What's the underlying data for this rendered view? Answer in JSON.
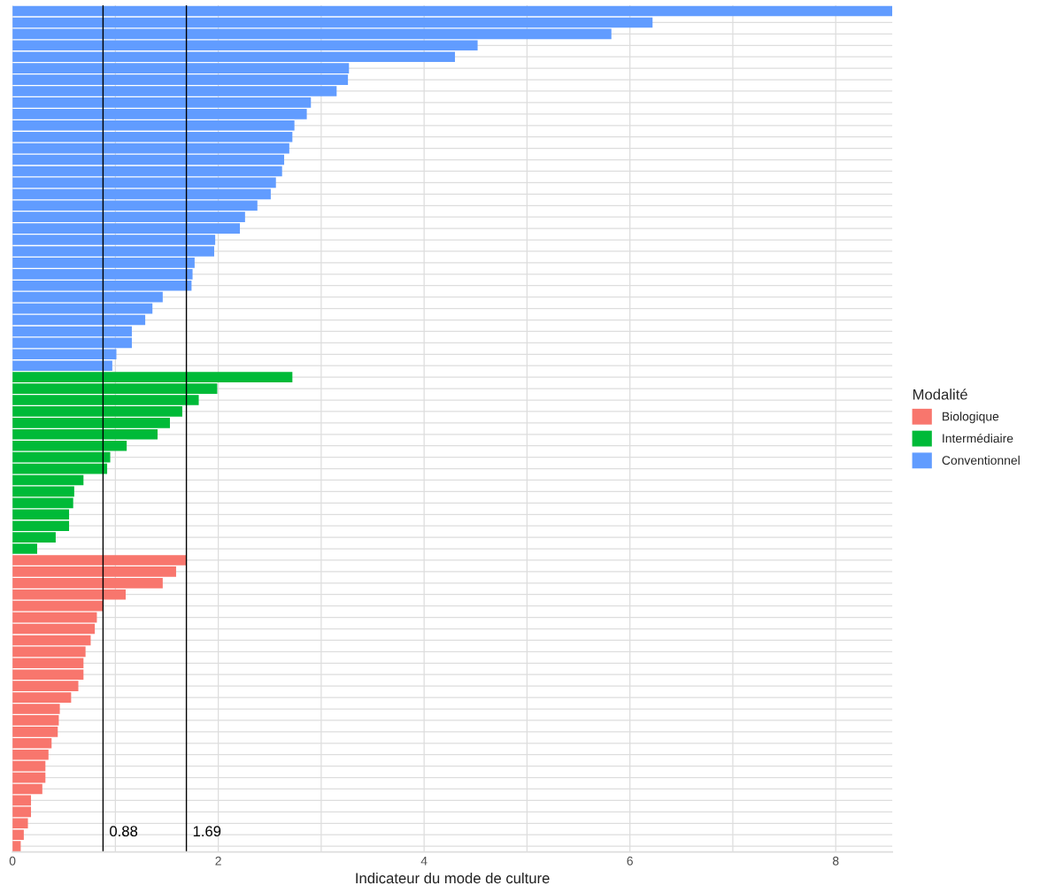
{
  "chart_data": {
    "type": "bar",
    "orientation": "horizontal",
    "xlabel": "Indicateur du mode de culture",
    "legend_title": "Modalité",
    "legend": "right",
    "grid": true,
    "tick_labels": "x",
    "categories": [
      null,
      null,
      null,
      null,
      null,
      null,
      null,
      null,
      null,
      null,
      null,
      null,
      null,
      null,
      null,
      null,
      null,
      null,
      null,
      null,
      null,
      null,
      null,
      null,
      null,
      null,
      null,
      null,
      null,
      null,
      null,
      null,
      null,
      null,
      null,
      null,
      null,
      null,
      null,
      null,
      null,
      null,
      null,
      null,
      null,
      null,
      null,
      null,
      null,
      null,
      null,
      null,
      null,
      null,
      null,
      null,
      null,
      null,
      null,
      null,
      null,
      null,
      null,
      null,
      null,
      null,
      null,
      null,
      null,
      null,
      null,
      null,
      null,
      null
    ],
    "xlim": [
      0,
      8.55
    ],
    "xticks": [
      0,
      {
        "value": 1,
        "label": null
      },
      2,
      {
        "value": 3,
        "label": null
      },
      4,
      {
        "value": 5,
        "label": null
      },
      6,
      {
        "value": 7,
        "label": null
      },
      8
    ],
    "series": [
      {
        "name": "Biologique",
        "color": "#f8766d",
        "values": [
          null,
          null,
          null,
          null,
          null,
          null,
          null,
          null,
          null,
          null,
          null,
          null,
          null,
          null,
          null,
          null,
          null,
          null,
          null,
          null,
          null,
          null,
          null,
          null,
          null,
          null,
          null,
          null,
          null,
          null,
          null,
          null,
          null,
          null,
          null,
          null,
          null,
          null,
          null,
          null,
          null,
          null,
          null,
          null,
          null,
          null,
          null,
          null,
          1.69,
          1.59,
          1.46,
          1.1,
          0.88,
          0.82,
          0.8,
          0.76,
          0.71,
          0.69,
          0.69,
          0.64,
          0.57,
          0.46,
          0.45,
          0.44,
          0.38,
          0.35,
          0.32,
          0.32,
          0.29,
          0.18,
          0.18,
          0.15,
          0.11,
          0.08
        ]
      },
      {
        "name": "Intermédiaire",
        "color": "#00ba38",
        "values": [
          null,
          null,
          null,
          null,
          null,
          null,
          null,
          null,
          null,
          null,
          null,
          null,
          null,
          null,
          null,
          null,
          null,
          null,
          null,
          null,
          null,
          null,
          null,
          null,
          null,
          null,
          null,
          null,
          null,
          null,
          null,
          null,
          2.72,
          1.99,
          1.81,
          1.65,
          1.53,
          1.41,
          1.11,
          0.95,
          0.92,
          0.69,
          0.6,
          0.59,
          0.55,
          0.55,
          0.42,
          0.24,
          null,
          null,
          null,
          null,
          null,
          null,
          null,
          null,
          null,
          null,
          null,
          null,
          null,
          null,
          null,
          null,
          null,
          null,
          null,
          null,
          null,
          null,
          null,
          null,
          null,
          null
        ]
      },
      {
        "name": "Conventionnel",
        "color": "#619cff",
        "values": [
          8.55,
          6.22,
          5.82,
          4.52,
          4.3,
          3.27,
          3.26,
          3.15,
          2.9,
          2.86,
          2.74,
          2.72,
          2.69,
          2.64,
          2.62,
          2.56,
          2.51,
          2.38,
          2.26,
          2.21,
          1.97,
          1.96,
          1.77,
          1.75,
          1.74,
          1.46,
          1.36,
          1.29,
          1.16,
          1.16,
          1.01,
          0.97,
          null,
          null,
          null,
          null,
          null,
          null,
          null,
          null,
          null,
          null,
          null,
          null,
          null,
          null,
          null,
          null,
          null,
          null,
          null,
          null,
          null,
          null,
          null,
          null,
          null,
          null,
          null,
          null,
          null,
          null,
          null,
          null,
          null,
          null,
          null,
          null,
          null,
          null,
          null,
          null,
          null,
          null
        ]
      }
    ],
    "ref_lines": [
      {
        "axis": "x",
        "value": 0.88,
        "label": "0.88",
        "color": "#000000"
      },
      {
        "axis": "x",
        "value": 1.69,
        "label": "1.69",
        "color": "#000000"
      }
    ]
  }
}
